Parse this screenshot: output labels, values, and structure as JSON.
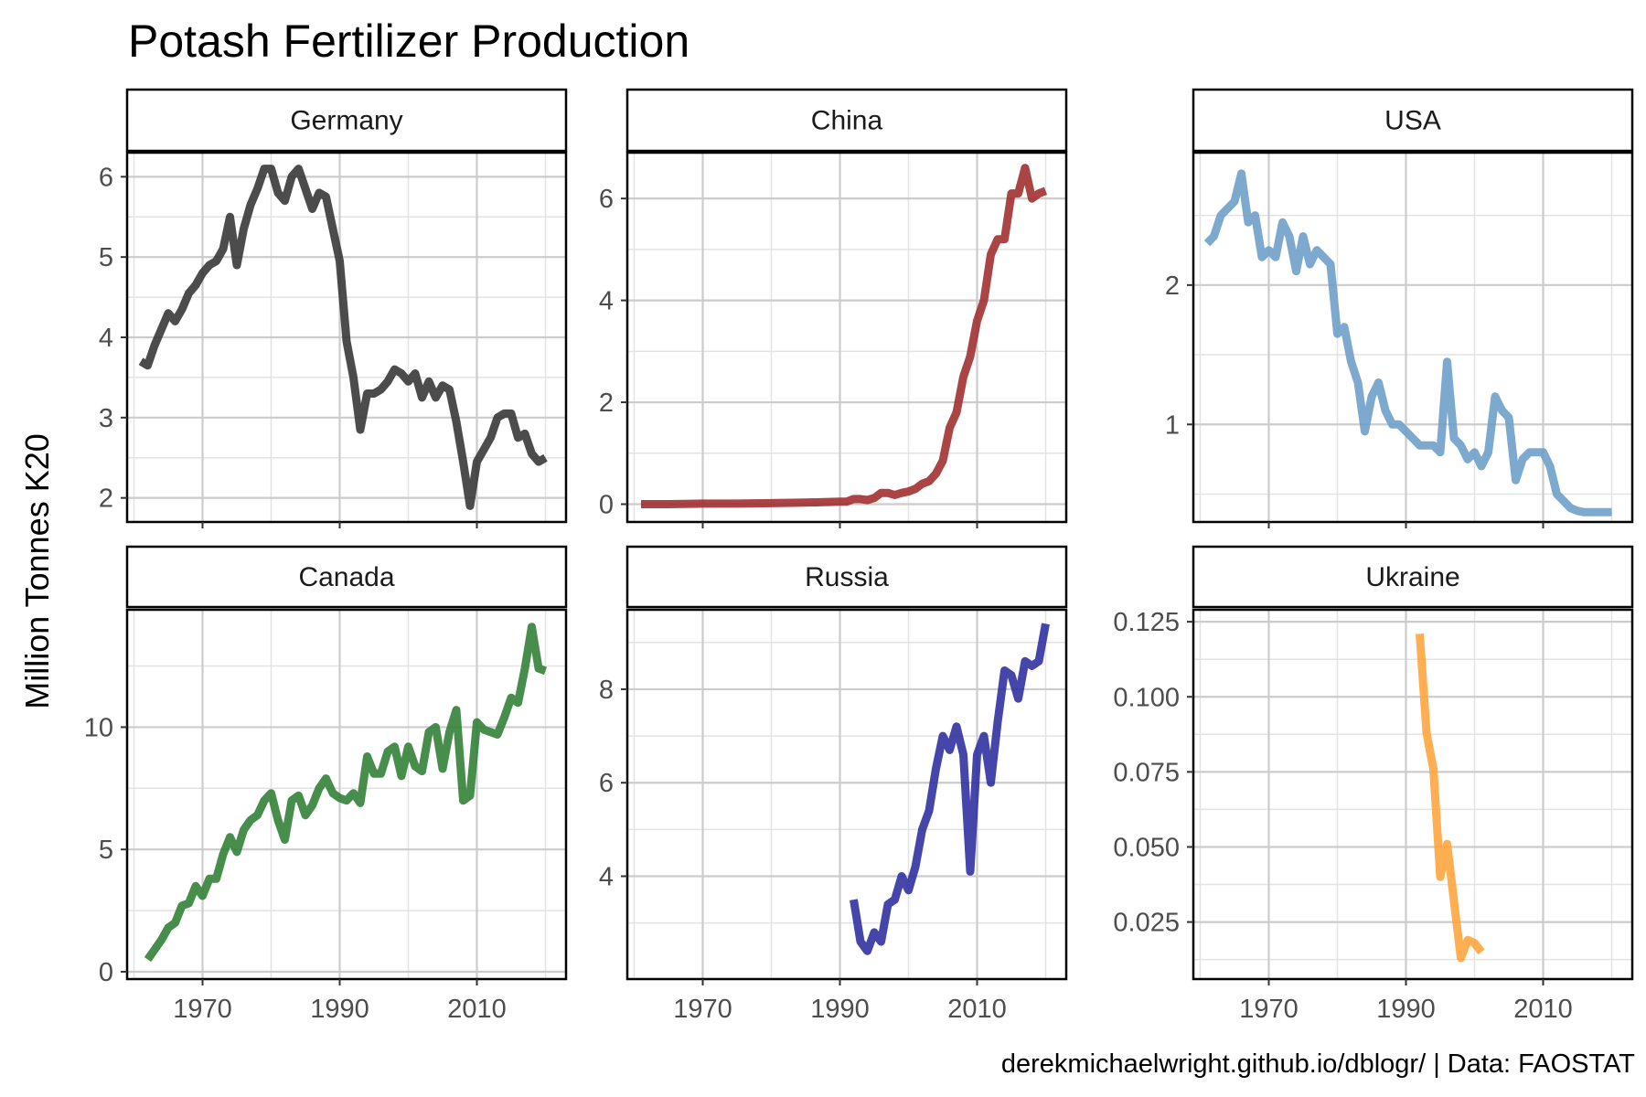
{
  "chart_data": {
    "type": "line",
    "title": "Potash Fertilizer Production",
    "ylabel": "Million Tonnes K20",
    "xlabel": "",
    "caption": "derekmichaelwright.github.io/dblogr/ | Data: FAOSTAT",
    "x_ticks": [
      "1970",
      "1990",
      "2010"
    ],
    "xlim": [
      1959,
      2023
    ],
    "facets": [
      {
        "name": "Germany",
        "color": "#333333",
        "ylim": [
          1.7,
          6.3
        ],
        "y_ticks": [
          2,
          3,
          4,
          5,
          6
        ],
        "y_tick_labels": [
          "2",
          "3",
          "4",
          "5",
          "6"
        ],
        "x": [
          1961,
          1962,
          1963,
          1964,
          1965,
          1966,
          1967,
          1968,
          1969,
          1970,
          1971,
          1972,
          1973,
          1974,
          1975,
          1976,
          1977,
          1978,
          1979,
          1980,
          1981,
          1982,
          1983,
          1984,
          1985,
          1986,
          1987,
          1988,
          1989,
          1990,
          1991,
          1992,
          1993,
          1994,
          1995,
          1996,
          1997,
          1998,
          1999,
          2000,
          2001,
          2002,
          2003,
          2004,
          2005,
          2006,
          2007,
          2008,
          2009,
          2010,
          2011,
          2012,
          2013,
          2014,
          2015,
          2016,
          2017,
          2018,
          2019,
          2020
        ],
        "y": [
          3.7,
          3.65,
          3.9,
          4.1,
          4.3,
          4.2,
          4.35,
          4.55,
          4.65,
          4.8,
          4.9,
          4.95,
          5.1,
          5.5,
          4.9,
          5.35,
          5.65,
          5.85,
          6.1,
          6.1,
          5.8,
          5.7,
          6.0,
          6.1,
          5.85,
          5.6,
          5.8,
          5.75,
          5.35,
          4.95,
          3.95,
          3.5,
          2.85,
          3.3,
          3.3,
          3.35,
          3.45,
          3.6,
          3.55,
          3.45,
          3.55,
          3.25,
          3.45,
          3.25,
          3.4,
          3.35,
          2.95,
          2.45,
          1.9,
          2.45,
          2.6,
          2.75,
          3.0,
          3.05,
          3.05,
          2.75,
          2.8,
          2.55,
          2.45,
          2.5
        ]
      },
      {
        "name": "China",
        "color": "#9E2A2B",
        "ylim": [
          -0.35,
          6.9
        ],
        "y_ticks": [
          0,
          2,
          4,
          6
        ],
        "y_tick_labels": [
          "0",
          "2",
          "4",
          "6"
        ],
        "x": [
          1961,
          1965,
          1970,
          1975,
          1980,
          1985,
          1990,
          1991,
          1992,
          1993,
          1994,
          1995,
          1996,
          1997,
          1998,
          1999,
          2000,
          2001,
          2002,
          2003,
          2004,
          2005,
          2006,
          2007,
          2008,
          2009,
          2010,
          2011,
          2012,
          2013,
          2014,
          2015,
          2016,
          2017,
          2018,
          2019,
          2020
        ],
        "y": [
          0.0,
          0.0,
          0.01,
          0.01,
          0.02,
          0.03,
          0.05,
          0.05,
          0.1,
          0.1,
          0.08,
          0.12,
          0.22,
          0.22,
          0.18,
          0.22,
          0.25,
          0.3,
          0.4,
          0.45,
          0.6,
          0.85,
          1.5,
          1.8,
          2.5,
          2.9,
          3.6,
          4.0,
          4.9,
          5.2,
          5.2,
          6.1,
          6.1,
          6.6,
          6.0,
          6.1,
          6.15
        ]
      },
      {
        "name": "USA",
        "color": "#6B9DC8",
        "ylim": [
          0.3,
          2.95
        ],
        "y_ticks": [
          1,
          2
        ],
        "y_tick_labels": [
          "1",
          "2"
        ],
        "x": [
          1961,
          1962,
          1963,
          1964,
          1965,
          1966,
          1967,
          1968,
          1969,
          1970,
          1971,
          1972,
          1973,
          1974,
          1975,
          1976,
          1977,
          1978,
          1979,
          1980,
          1981,
          1982,
          1983,
          1984,
          1985,
          1986,
          1987,
          1988,
          1989,
          1990,
          1991,
          1992,
          1993,
          1994,
          1995,
          1996,
          1997,
          1998,
          1999,
          2000,
          2001,
          2002,
          2003,
          2004,
          2005,
          2006,
          2007,
          2008,
          2009,
          2010,
          2011,
          2012,
          2013,
          2014,
          2015,
          2016,
          2017,
          2018,
          2019,
          2020
        ],
        "y": [
          2.3,
          2.35,
          2.5,
          2.55,
          2.6,
          2.8,
          2.45,
          2.5,
          2.2,
          2.25,
          2.2,
          2.45,
          2.35,
          2.1,
          2.35,
          2.15,
          2.25,
          2.2,
          2.15,
          1.65,
          1.7,
          1.45,
          1.3,
          0.95,
          1.2,
          1.3,
          1.1,
          1.0,
          1.0,
          0.95,
          0.9,
          0.85,
          0.85,
          0.85,
          0.8,
          1.45,
          0.9,
          0.85,
          0.75,
          0.8,
          0.7,
          0.8,
          1.2,
          1.1,
          1.05,
          0.6,
          0.75,
          0.8,
          0.8,
          0.8,
          0.7,
          0.5,
          0.45,
          0.4,
          0.38,
          0.37,
          0.37,
          0.37,
          0.37,
          0.37
        ]
      },
      {
        "name": "Canada",
        "color": "#2E7D32",
        "ylim": [
          -0.3,
          14.8
        ],
        "y_ticks": [
          0,
          5,
          10
        ],
        "y_tick_labels": [
          "0",
          "5",
          "10"
        ],
        "x": [
          1962,
          1963,
          1964,
          1965,
          1966,
          1967,
          1968,
          1969,
          1970,
          1971,
          1972,
          1973,
          1974,
          1975,
          1976,
          1977,
          1978,
          1979,
          1980,
          1981,
          1982,
          1983,
          1984,
          1985,
          1986,
          1987,
          1988,
          1989,
          1990,
          1991,
          1992,
          1993,
          1994,
          1995,
          1996,
          1997,
          1998,
          1999,
          2000,
          2001,
          2002,
          2003,
          2004,
          2005,
          2006,
          2007,
          2008,
          2009,
          2010,
          2011,
          2012,
          2013,
          2014,
          2015,
          2016,
          2017,
          2018,
          2019,
          2020
        ],
        "y": [
          0.5,
          0.9,
          1.3,
          1.8,
          2.0,
          2.7,
          2.8,
          3.5,
          3.1,
          3.8,
          3.8,
          4.8,
          5.5,
          4.9,
          5.8,
          6.2,
          6.4,
          7.0,
          7.3,
          6.2,
          5.4,
          7.0,
          7.2,
          6.4,
          6.8,
          7.5,
          7.9,
          7.3,
          7.1,
          7.0,
          7.3,
          6.9,
          8.8,
          8.1,
          8.1,
          9.0,
          9.2,
          8.0,
          9.2,
          8.4,
          8.2,
          9.8,
          10.0,
          8.3,
          9.8,
          10.7,
          7.0,
          7.2,
          10.2,
          9.9,
          9.8,
          9.7,
          10.4,
          11.2,
          11.0,
          12.4,
          14.1,
          12.4,
          12.3
        ]
      },
      {
        "name": "Russia",
        "color": "#2B2B9E",
        "ylim": [
          1.8,
          9.7
        ],
        "y_ticks": [
          4,
          6,
          8
        ],
        "y_tick_labels": [
          "4",
          "6",
          "8"
        ],
        "x": [
          1992,
          1993,
          1994,
          1995,
          1996,
          1997,
          1998,
          1999,
          2000,
          2001,
          2002,
          2003,
          2004,
          2005,
          2006,
          2007,
          2008,
          2009,
          2010,
          2011,
          2012,
          2013,
          2014,
          2015,
          2016,
          2017,
          2018,
          2019,
          2020
        ],
        "y": [
          3.5,
          2.6,
          2.4,
          2.8,
          2.6,
          3.4,
          3.5,
          4.0,
          3.7,
          4.2,
          5.0,
          5.4,
          6.3,
          7.0,
          6.7,
          7.2,
          6.6,
          4.1,
          6.6,
          7.0,
          6.0,
          7.3,
          8.4,
          8.3,
          7.8,
          8.6,
          8.5,
          8.6,
          9.4
        ]
      },
      {
        "name": "Ukraine",
        "color": "#FFA33A",
        "ylim": [
          0.006,
          0.129
        ],
        "y_ticks": [
          0.025,
          0.05,
          0.075,
          0.1,
          0.125
        ],
        "y_tick_labels": [
          "0.025",
          "0.050",
          "0.075",
          "0.100",
          "0.125"
        ],
        "x": [
          1992,
          1993,
          1994,
          1995,
          1996,
          1997,
          1998,
          1999,
          2000,
          2001
        ],
        "y": [
          0.121,
          0.088,
          0.076,
          0.04,
          0.051,
          0.032,
          0.013,
          0.019,
          0.018,
          0.015
        ]
      }
    ]
  }
}
